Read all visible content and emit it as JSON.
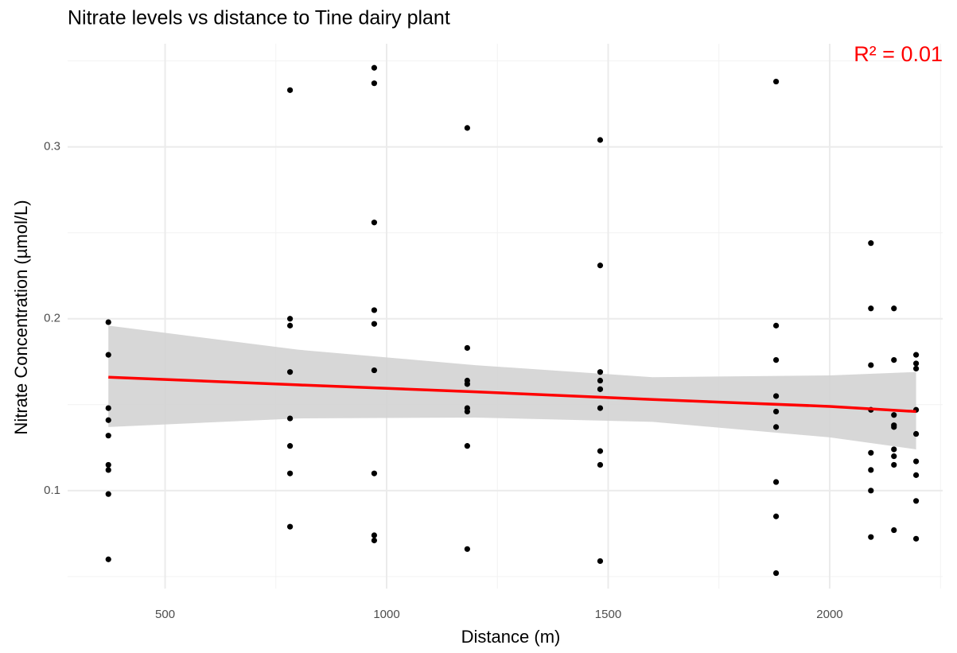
{
  "chart_data": {
    "type": "scatter",
    "title": "Nitrate levels vs distance to Tine dairy plant",
    "x_label": "Distance (m)",
    "y_label": "Nitrate Concentration (µmol/L)",
    "annotation": "R² = 0.01",
    "annotation_color": "#ff0000",
    "color": "#000000",
    "x": [
      372,
      372,
      372,
      372,
      372,
      372,
      372,
      372,
      372,
      782,
      782,
      782,
      782,
      782,
      782,
      782,
      782,
      972,
      972,
      972,
      972,
      972,
      972,
      972,
      972,
      972,
      1182,
      1182,
      1182,
      1182,
      1182,
      1182,
      1182,
      1182,
      1482,
      1482,
      1482,
      1482,
      1482,
      1482,
      1482,
      1482,
      1482,
      1879,
      1879,
      1879,
      1879,
      1879,
      1879,
      1879,
      1879,
      1879,
      2093,
      2093,
      2093,
      2093,
      2093,
      2093,
      2093,
      2093,
      2145,
      2145,
      2145,
      2145,
      2145,
      2145,
      2145,
      2145,
      2145,
      2195,
      2195,
      2195,
      2195,
      2195,
      2195,
      2195,
      2195,
      2195
    ],
    "values": [
      0.198,
      0.179,
      0.148,
      0.141,
      0.132,
      0.115,
      0.112,
      0.098,
      0.06,
      0.333,
      0.2,
      0.196,
      0.169,
      0.142,
      0.126,
      0.11,
      0.079,
      0.346,
      0.337,
      0.256,
      0.205,
      0.197,
      0.17,
      0.11,
      0.074,
      0.071,
      0.311,
      0.183,
      0.164,
      0.162,
      0.148,
      0.146,
      0.126,
      0.066,
      0.304,
      0.231,
      0.169,
      0.164,
      0.159,
      0.148,
      0.123,
      0.115,
      0.059,
      0.338,
      0.196,
      0.176,
      0.155,
      0.146,
      0.137,
      0.105,
      0.085,
      0.052,
      0.244,
      0.206,
      0.173,
      0.147,
      0.122,
      0.112,
      0.1,
      0.073,
      0.206,
      0.176,
      0.144,
      0.138,
      0.137,
      0.124,
      0.12,
      0.115,
      0.077,
      0.179,
      0.174,
      0.171,
      0.147,
      0.133,
      0.117,
      0.109,
      0.094,
      0.072
    ],
    "fit": {
      "color": "#ff0000",
      "band_color": "#d3d3d3",
      "x": [
        372,
        800,
        1200,
        1600,
        2000,
        2195
      ],
      "values": [
        0.166,
        0.1615,
        0.1575,
        0.153,
        0.149,
        0.146
      ],
      "lower": [
        0.137,
        0.142,
        0.1425,
        0.14,
        0.131,
        0.124
      ],
      "upper": [
        0.196,
        0.182,
        0.173,
        0.166,
        0.167,
        0.169
      ]
    },
    "xlim": [
      280,
      2255
    ],
    "ylim": [
      0.043,
      0.36
    ],
    "xticks": [
      500,
      1000,
      1500,
      2000
    ],
    "yticks": [
      0.1,
      0.2,
      0.3
    ],
    "minor_xticks": [
      750,
      1250,
      1750,
      2250
    ],
    "minor_yticks": [
      0.05,
      0.15,
      0.25,
      0.35
    ],
    "grid": true
  }
}
